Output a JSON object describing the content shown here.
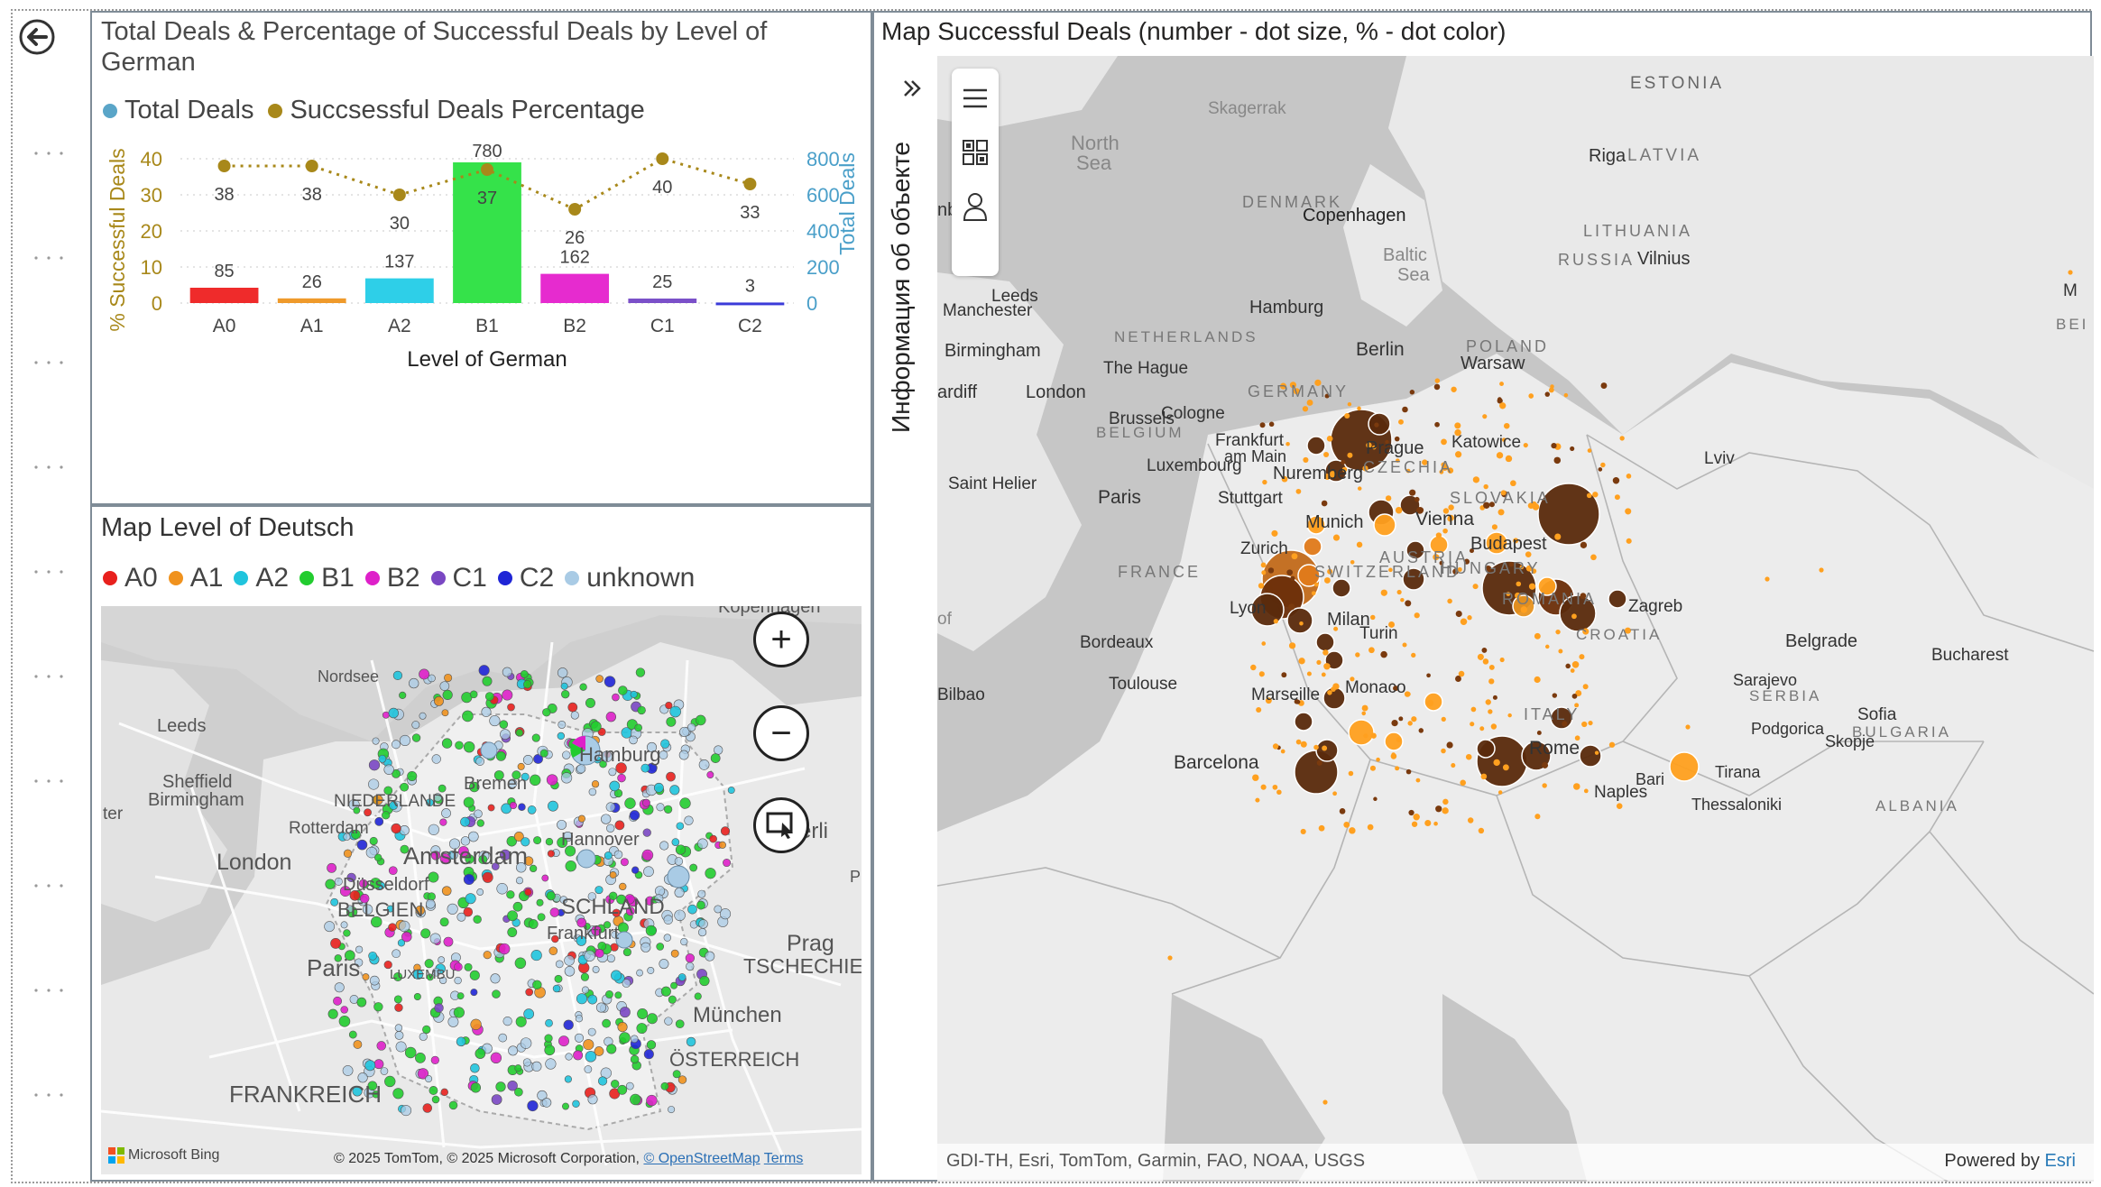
{
  "chart_panel": {
    "title": "Total Deals & Percentage of Successful Deals by Level of German",
    "legend": [
      {
        "label": "Total Deals",
        "color": "#5aa5c8"
      },
      {
        "label": "Succsessful Deals Percentage",
        "color": "#a8881a"
      }
    ]
  },
  "chart_data": {
    "type": "bar",
    "categories": [
      "A0",
      "A1",
      "A2",
      "B1",
      "B2",
      "C1",
      "C2"
    ],
    "series": [
      {
        "name": "Total Deals",
        "type": "bar",
        "axis": "right",
        "values": [
          85,
          26,
          137,
          780,
          162,
          25,
          3
        ],
        "colors": [
          "#ef2b2b",
          "#ef9a2b",
          "#2ecfe8",
          "#35e24a",
          "#e62bcf",
          "#7b50c9",
          "#3b3bd9"
        ]
      },
      {
        "name": "Succsessful Deals Percentage",
        "type": "line",
        "axis": "left",
        "values": [
          38,
          38,
          30,
          37,
          26,
          40,
          33
        ],
        "color": "#a8881a"
      }
    ],
    "xlabel": "Level of German",
    "ylabel_left": "% Successful Deals",
    "ylabel_right": "Total Deals",
    "ylim_left": [
      0,
      40
    ],
    "ylim_right": [
      0,
      800
    ],
    "yticks_left": [
      "0",
      "10",
      "20",
      "30",
      "40"
    ],
    "yticks_right": [
      "0",
      "200",
      "400",
      "600",
      "800"
    ],
    "grid": true,
    "legend_position": "top-left"
  },
  "level_map": {
    "title": "Map Level of Deutsch",
    "legend": [
      {
        "label": "A0",
        "color": "#e8201d"
      },
      {
        "label": "A1",
        "color": "#f0921e"
      },
      {
        "label": "A2",
        "color": "#20c4dd"
      },
      {
        "label": "B1",
        "color": "#22cc2f"
      },
      {
        "label": "B2",
        "color": "#de20c9"
      },
      {
        "label": "C1",
        "color": "#7a47c3"
      },
      {
        "label": "C2",
        "color": "#1f25d6"
      },
      {
        "label": "unknown",
        "color": "#a9cbe5"
      }
    ],
    "places": [
      "Nordsee",
      "Leeds",
      "Sheffield",
      "Birmingham",
      "London",
      "Paris",
      "NIEDERLANDE",
      "Amsterdam",
      "Rotterdam",
      "Düsseldorf",
      "BELGIEN",
      "LUXEMBU",
      "Bremen",
      "Hamburg",
      "Hannover",
      "Berli",
      "Prag",
      "TSCHECHIEN",
      "München",
      "ÖSTERREICH",
      "FRANKREICH",
      "ter",
      "Kopenhagen",
      "P",
      "Frankfurt",
      "SCHLAND"
    ],
    "attribution": "© 2025 TomTom, © 2025 Microsoft Corporation,",
    "osm_link": "© OpenStreetMap",
    "terms_link": "Terms",
    "bing_logo": "Microsoft Bing"
  },
  "deals_map": {
    "title": "Map Successful Deals (number - dot size, % - dot color)",
    "side_panel_label": "Информация об объекте",
    "places": [
      "ESTONIA",
      "Skagerrak",
      "North",
      "Sea",
      "Riga",
      "LATVIA",
      "nburgh",
      "DENMARK",
      "Copenhagen",
      "LITHUANIA",
      "Baltic",
      "Sea",
      "RUSSIA",
      "Vilnius",
      "Leeds",
      "Manchester",
      "Hamburg",
      "M",
      "BEI",
      "NETHERLANDS",
      "Birmingham",
      "Berlin",
      "POLAND",
      "Warsaw",
      "The Hague",
      "ardiff",
      "London",
      "GERMANY",
      "Brussels",
      "BELGIUM",
      "Cologne",
      "Katowice",
      "Frankfurt",
      "am Main",
      "Prague",
      "Luxembourg",
      "CZECHIA",
      "Lviv",
      "Saint Helier",
      "Nuremberg",
      "Paris",
      "Stuttgart",
      "SLOVAKIA",
      "Vienna",
      "Munich",
      "Budapest",
      "Zurich",
      "AUSTRIA",
      "FRANCE",
      "SWITZERLAND",
      "HUNGARY",
      "ROMANIA",
      "Lyon",
      "Zagreb",
      "Milan",
      "Bordeaux",
      "Turin",
      "CROATIA",
      "Belgrade",
      "Bucharest",
      "Monaco",
      "Bilbao",
      "Toulouse",
      "Marseille",
      "Sarajevo",
      "SERBIA",
      "ITALY",
      "Sofia",
      "BULGARIA",
      "Podgorica",
      "Skopje",
      "Rome",
      "Barcelona",
      "Bari",
      "Tirana",
      "Naples",
      "Thessaloniki",
      "of",
      "ALBANIA"
    ],
    "attribution": "GDI-TH, Esri, TomTom, Garmin, FAO, NOAA, USGS",
    "powered_by": "Powered by",
    "esri": "Esri"
  }
}
